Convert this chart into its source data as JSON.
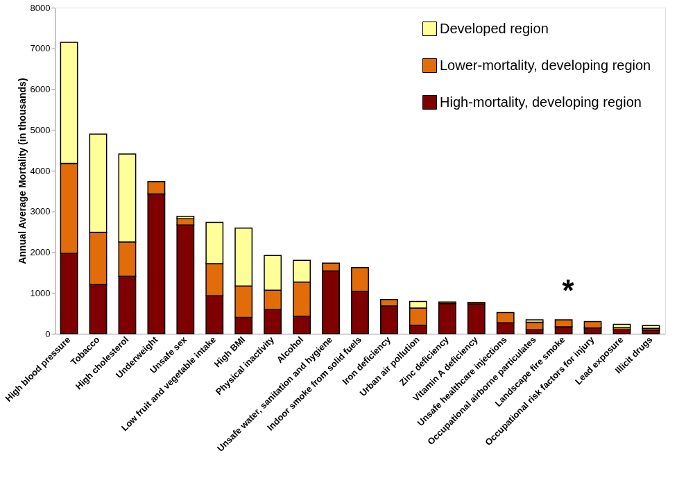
{
  "chart_data": {
    "type": "bar",
    "stacked": true,
    "ylabel": "Annual Average Mortality (in thousands)",
    "categories": [
      "High blood pressure",
      "Tobacco",
      "High cholesterol",
      "Underweight",
      "Unsafe sex",
      "Low fruit and vegetable intake",
      "High BMI",
      "Physical inactivity",
      "Alcohol",
      "Unsafe water, sanitation and hygiene",
      "Indoor smoke from solid fuels",
      "Iron deficiency",
      "Urban air pollution",
      "Zinc deficiency",
      "Vitamin A deficiency",
      "Unsafe healthcare injections",
      "Occupational airborne particulates",
      "Landscape fire smoke",
      "Occupational risk factors for injury",
      "Lead exposure",
      "Illicit drugs"
    ],
    "series": [
      {
        "name": "High-mortality, developing region",
        "color": "#7f0000",
        "values": [
          1970,
          1210,
          1410,
          3430,
          2670,
          930,
          400,
          590,
          430,
          1540,
          1040,
          680,
          210,
          740,
          730,
          270,
          100,
          170,
          140,
          100,
          90
        ]
      },
      {
        "name": "Lower-mortality, developing region",
        "color": "#e36c0a",
        "values": [
          2210,
          1280,
          840,
          300,
          150,
          790,
          770,
          480,
          840,
          190,
          580,
          160,
          420,
          40,
          40,
          250,
          180,
          170,
          160,
          50,
          40
        ]
      },
      {
        "name": "Developed region",
        "color": "#ffff99",
        "values": [
          2970,
          2410,
          2160,
          null,
          60,
          1010,
          1420,
          850,
          530,
          null,
          null,
          null,
          160,
          null,
          null,
          null,
          60,
          null,
          null,
          80,
          70
        ]
      }
    ],
    "ylim": [
      0,
      8000
    ],
    "yticks": [
      0,
      1000,
      2000,
      3000,
      4000,
      5000,
      6000,
      7000,
      8000
    ],
    "grid": false,
    "legend": "top right",
    "annotations": [
      "*"
    ]
  }
}
